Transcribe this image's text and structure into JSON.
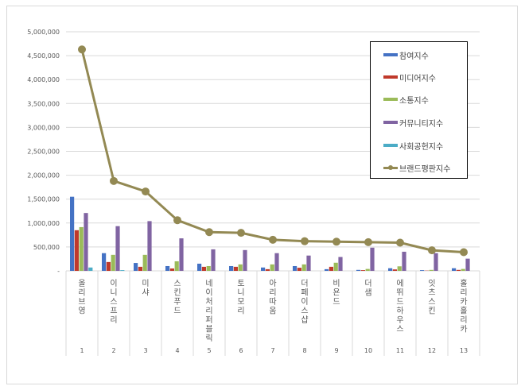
{
  "chart_data": {
    "type": "bar",
    "title": "",
    "xlabel": "",
    "ylabel": "",
    "ylim": [
      0,
      5000000
    ],
    "yticks": [
      "-",
      "500,000",
      "1,000,000",
      "1,500,000",
      "2,000,000",
      "2,500,000",
      "3,000,000",
      "3,500,000",
      "4,000,000",
      "4,500,000",
      "5,000,000"
    ],
    "grid": true,
    "legend_position": "upper-right inside",
    "categories": [
      "1",
      "2",
      "3",
      "4",
      "5",
      "6",
      "7",
      "8",
      "9",
      "10",
      "11",
      "12",
      "13"
    ],
    "category_names": [
      "올리브영",
      "이니스프리",
      "미샤",
      "스킨푸드",
      "네이처리퍼블릭",
      "토니모리",
      "아리따움",
      "더페이스샵",
      "비욘드",
      "더샘",
      "에뛰드하우스",
      "잇츠스킨",
      "홀리카홀리카"
    ],
    "series": [
      {
        "name": "참여지수",
        "type": "bar",
        "color": "#4472c4",
        "values": [
          1550000,
          370000,
          165000,
          100000,
          150000,
          100000,
          70000,
          100000,
          35000,
          20000,
          55000,
          15000,
          55000
        ]
      },
      {
        "name": "미디어지수",
        "type": "bar",
        "color": "#c0392b",
        "values": [
          850000,
          185000,
          85000,
          50000,
          85000,
          85000,
          35000,
          65000,
          85000,
          15000,
          30000,
          5000,
          20000
        ]
      },
      {
        "name": "소통지수",
        "type": "bar",
        "color": "#9bbb59",
        "values": [
          915000,
          335000,
          335000,
          200000,
          100000,
          135000,
          135000,
          135000,
          170000,
          40000,
          95000,
          20000,
          40000
        ]
      },
      {
        "name": "커뮤니티지수",
        "type": "bar",
        "color": "#8064a2",
        "values": [
          1210000,
          935000,
          1040000,
          680000,
          450000,
          435000,
          370000,
          320000,
          290000,
          485000,
          400000,
          370000,
          255000
        ]
      },
      {
        "name": "사회공헌지수",
        "type": "bar",
        "color": "#4bacc6",
        "values": [
          70000,
          15000,
          0,
          0,
          0,
          0,
          0,
          0,
          0,
          0,
          0,
          0,
          0
        ]
      },
      {
        "name": "브랜드평판지수",
        "type": "line",
        "color": "#938953",
        "values": [
          4630000,
          1880000,
          1660000,
          1060000,
          810000,
          795000,
          650000,
          620000,
          610000,
          600000,
          590000,
          430000,
          390000
        ]
      }
    ]
  },
  "legend": {
    "items": [
      {
        "label": "참여지수",
        "color": "#4472c4",
        "kind": "bar"
      },
      {
        "label": "미디어지수",
        "color": "#c0392b",
        "kind": "bar"
      },
      {
        "label": "소통지수",
        "color": "#9bbb59",
        "kind": "bar"
      },
      {
        "label": "커뮤니티지수",
        "color": "#8064a2",
        "kind": "bar"
      },
      {
        "label": "사회공헌지수",
        "color": "#4bacc6",
        "kind": "bar"
      },
      {
        "label": "브랜드평판지수",
        "color": "#938953",
        "kind": "line"
      }
    ]
  }
}
